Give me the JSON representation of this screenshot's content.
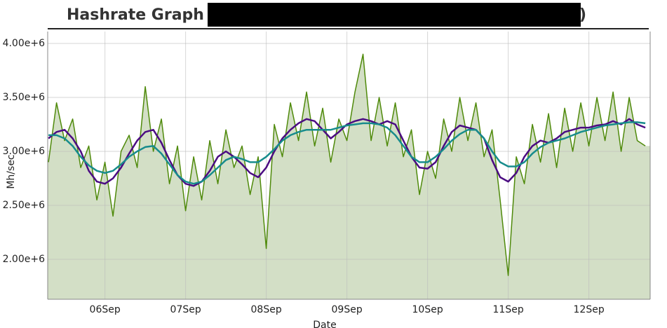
{
  "chart_data": {
    "type": "line",
    "title": "Hashrate Graph (",
    "title_end": ")",
    "x_label": "Date",
    "y_label": "Mh/sec",
    "grid": true,
    "area_fill": "#d3dfc6",
    "xlim": [
      5.29,
      12.76
    ],
    "ylim": [
      1630000,
      4110000
    ],
    "xticks": [
      {
        "value": 6,
        "label": "06Sep"
      },
      {
        "value": 7,
        "label": "07Sep"
      },
      {
        "value": 8,
        "label": "08Sep"
      },
      {
        "value": 9,
        "label": "09Sep"
      },
      {
        "value": 10,
        "label": "10Sep"
      },
      {
        "value": 11,
        "label": "11Sep"
      },
      {
        "value": 12,
        "label": "12Sep"
      }
    ],
    "yticks": [
      {
        "value": 2000000,
        "label": "2.00e+6"
      },
      {
        "value": 2500000,
        "label": "2.50e+6"
      },
      {
        "value": 3000000,
        "label": "3.00e+6"
      },
      {
        "value": 3500000,
        "label": "3.50e+6"
      },
      {
        "value": 4000000,
        "label": "4.00e+6"
      }
    ],
    "x": [
      5.3,
      5.4,
      5.5,
      5.6,
      5.7,
      5.8,
      5.9,
      6.0,
      6.1,
      6.2,
      6.3,
      6.4,
      6.5,
      6.6,
      6.7,
      6.8,
      6.9,
      7.0,
      7.1,
      7.2,
      7.3,
      7.4,
      7.5,
      7.6,
      7.7,
      7.8,
      7.9,
      8.0,
      8.1,
      8.2,
      8.3,
      8.4,
      8.5,
      8.6,
      8.7,
      8.8,
      8.9,
      9.0,
      9.1,
      9.2,
      9.3,
      9.4,
      9.5,
      9.6,
      9.7,
      9.8,
      9.9,
      10.0,
      10.1,
      10.2,
      10.3,
      10.4,
      10.5,
      10.6,
      10.7,
      10.8,
      10.9,
      11.0,
      11.1,
      11.2,
      11.3,
      11.4,
      11.5,
      11.6,
      11.7,
      11.8,
      11.9,
      12.0,
      12.1,
      12.2,
      12.3,
      12.4,
      12.5,
      12.6,
      12.7
    ],
    "series": [
      {
        "color": "#4f8a0b",
        "fill": true,
        "values": [
          2900000,
          3450000,
          3100000,
          3300000,
          2850000,
          3050000,
          2550000,
          2900000,
          2400000,
          3000000,
          3150000,
          2850000,
          3600000,
          3000000,
          3300000,
          2700000,
          3050000,
          2450000,
          2950000,
          2550000,
          3100000,
          2700000,
          3200000,
          2850000,
          3050000,
          2600000,
          2950000,
          2100000,
          3250000,
          2950000,
          3450000,
          3100000,
          3550000,
          3050000,
          3400000,
          2900000,
          3300000,
          3100000,
          3550000,
          3900000,
          3100000,
          3500000,
          3050000,
          3450000,
          2950000,
          3200000,
          2600000,
          3000000,
          2750000,
          3300000,
          3000000,
          3500000,
          3100000,
          3450000,
          2950000,
          3200000,
          2550000,
          1850000,
          2950000,
          2700000,
          3250000,
          2900000,
          3350000,
          2850000,
          3400000,
          3000000,
          3450000,
          3050000,
          3500000,
          3100000,
          3550000,
          3000000,
          3500000,
          3100000,
          3050000
        ]
      },
      {
        "color": "#4b0c82",
        "values": [
          3120000,
          3180000,
          3200000,
          3120000,
          3000000,
          2820000,
          2720000,
          2700000,
          2750000,
          2850000,
          2980000,
          3100000,
          3180000,
          3200000,
          3080000,
          2920000,
          2780000,
          2700000,
          2680000,
          2720000,
          2820000,
          2950000,
          3000000,
          2950000,
          2880000,
          2800000,
          2760000,
          2850000,
          3000000,
          3120000,
          3200000,
          3260000,
          3300000,
          3280000,
          3200000,
          3120000,
          3180000,
          3250000,
          3280000,
          3300000,
          3280000,
          3250000,
          3280000,
          3250000,
          3100000,
          2950000,
          2850000,
          2840000,
          2900000,
          3050000,
          3180000,
          3240000,
          3220000,
          3200000,
          3120000,
          2920000,
          2760000,
          2720000,
          2800000,
          2950000,
          3050000,
          3100000,
          3080000,
          3120000,
          3180000,
          3200000,
          3220000,
          3220000,
          3240000,
          3250000,
          3280000,
          3250000,
          3300000,
          3250000,
          3220000
        ]
      },
      {
        "color": "#178c8c",
        "values": [
          3150000,
          3150000,
          3120000,
          3050000,
          2950000,
          2870000,
          2820000,
          2800000,
          2820000,
          2880000,
          2950000,
          3000000,
          3040000,
          3050000,
          2980000,
          2880000,
          2780000,
          2720000,
          2700000,
          2720000,
          2780000,
          2850000,
          2920000,
          2950000,
          2930000,
          2900000,
          2900000,
          2950000,
          3020000,
          3100000,
          3150000,
          3180000,
          3200000,
          3200000,
          3200000,
          3200000,
          3220000,
          3240000,
          3250000,
          3260000,
          3260000,
          3250000,
          3220000,
          3150000,
          3050000,
          2950000,
          2900000,
          2900000,
          2950000,
          3020000,
          3100000,
          3160000,
          3200000,
          3200000,
          3120000,
          3000000,
          2900000,
          2860000,
          2860000,
          2900000,
          2980000,
          3040000,
          3080000,
          3100000,
          3120000,
          3150000,
          3180000,
          3200000,
          3220000,
          3240000,
          3250000,
          3260000,
          3270000,
          3270000,
          3260000
        ]
      }
    ]
  }
}
